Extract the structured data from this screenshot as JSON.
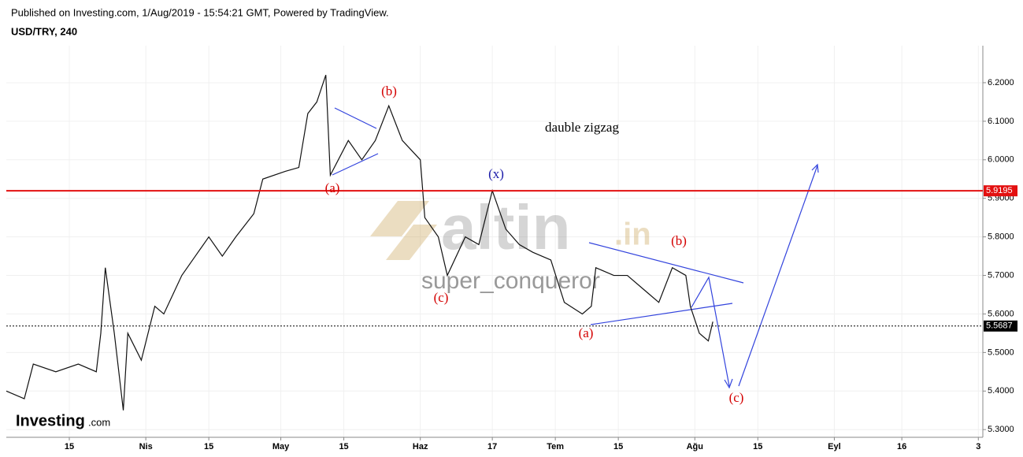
{
  "header": {
    "published": "Published on Investing.com, 1/Aug/2019 - 15:54:21 GMT, Powered by TradingView.",
    "symbol": "USD/TRY, 240"
  },
  "chart_data": {
    "type": "line",
    "series": [
      {
        "name": "USD/TRY",
        "color": "#111111",
        "x": [
          60,
          64,
          66,
          71,
          76,
          80,
          81,
          82,
          84,
          86,
          87,
          90,
          93,
          95,
          99,
          102,
          105,
          108,
          111,
          115,
          117,
          122,
          125,
          127,
          129,
          131,
          132,
          136,
          139,
          142,
          145,
          148,
          152,
          153,
          156,
          158,
          162,
          165,
          168,
          171,
          174,
          177,
          181,
          184,
          188,
          190,
          191,
          195,
          198,
          202,
          205,
          208,
          211,
          212,
          214,
          216,
          217
        ],
        "values": [
          5.4,
          5.38,
          5.47,
          5.45,
          5.47,
          5.45,
          5.55,
          5.72,
          5.55,
          5.35,
          5.55,
          5.48,
          5.62,
          5.6,
          5.7,
          5.75,
          5.8,
          5.75,
          5.8,
          5.86,
          5.95,
          5.97,
          5.98,
          6.12,
          6.15,
          6.22,
          5.96,
          6.05,
          6.0,
          6.05,
          6.14,
          6.05,
          6.0,
          5.85,
          5.8,
          5.7,
          5.8,
          5.78,
          5.92,
          5.82,
          5.78,
          5.76,
          5.74,
          5.63,
          5.6,
          5.62,
          5.72,
          5.7,
          5.7,
          5.66,
          5.63,
          5.72,
          5.7,
          5.62,
          5.55,
          5.53,
          5.58
        ]
      }
    ],
    "xlim": [
      60,
      277
    ],
    "ylim": [
      5.28,
      6.296
    ],
    "xticks": [
      {
        "value": 74,
        "label": "15"
      },
      {
        "value": 91,
        "label": "Nis"
      },
      {
        "value": 105,
        "label": "15"
      },
      {
        "value": 121,
        "label": "May"
      },
      {
        "value": 135,
        "label": "15"
      },
      {
        "value": 152,
        "label": "Haz"
      },
      {
        "value": 168,
        "label": "17"
      },
      {
        "value": 182,
        "label": "Tem"
      },
      {
        "value": 196,
        "label": "15"
      },
      {
        "value": 213,
        "label": "Ağu"
      },
      {
        "value": 227,
        "label": "15"
      },
      {
        "value": 244,
        "label": "Eyl"
      },
      {
        "value": 259,
        "label": "16"
      },
      {
        "value": 276,
        "label": "3"
      }
    ],
    "yticks": [
      {
        "value": 5.3,
        "label": "5.3000"
      },
      {
        "value": 5.4,
        "label": "5.4000"
      },
      {
        "value": 5.5,
        "label": "5.5000"
      },
      {
        "value": 5.6,
        "label": "5.6000"
      },
      {
        "value": 5.7,
        "label": "5.7000"
      },
      {
        "value": 5.8,
        "label": "5.8000"
      },
      {
        "value": 5.9,
        "label": "5.9000"
      },
      {
        "value": 6.0,
        "label": "6.0000"
      },
      {
        "value": 6.1,
        "label": "6.1000"
      },
      {
        "value": 6.2,
        "label": "6.2000"
      }
    ],
    "grid": true,
    "hlines": [
      {
        "value": 5.9195,
        "color": "#e31010",
        "dashed": false
      },
      {
        "value": 5.5687,
        "color": "#000000",
        "dashed": true
      }
    ],
    "annotations": [
      {
        "text": "(a)",
        "color": "#d40000"
      },
      {
        "text": "(b)",
        "color": "#d40000"
      },
      {
        "text": "(c)",
        "color": "#d40000"
      },
      {
        "text": "(x)",
        "color": "#1a1aa8"
      },
      {
        "text": "(a)",
        "color": "#d40000"
      },
      {
        "text": "(b)",
        "color": "#d40000"
      },
      {
        "text": "(c)",
        "color": "#d40000"
      },
      {
        "text": "dauble zigzag",
        "color": "#000000"
      }
    ],
    "watermark": {
      "brand": "altin",
      "suffix": ".in",
      "author": "super_conqueror"
    },
    "logo": {
      "name": "Investing",
      "suffix": ".com"
    }
  }
}
